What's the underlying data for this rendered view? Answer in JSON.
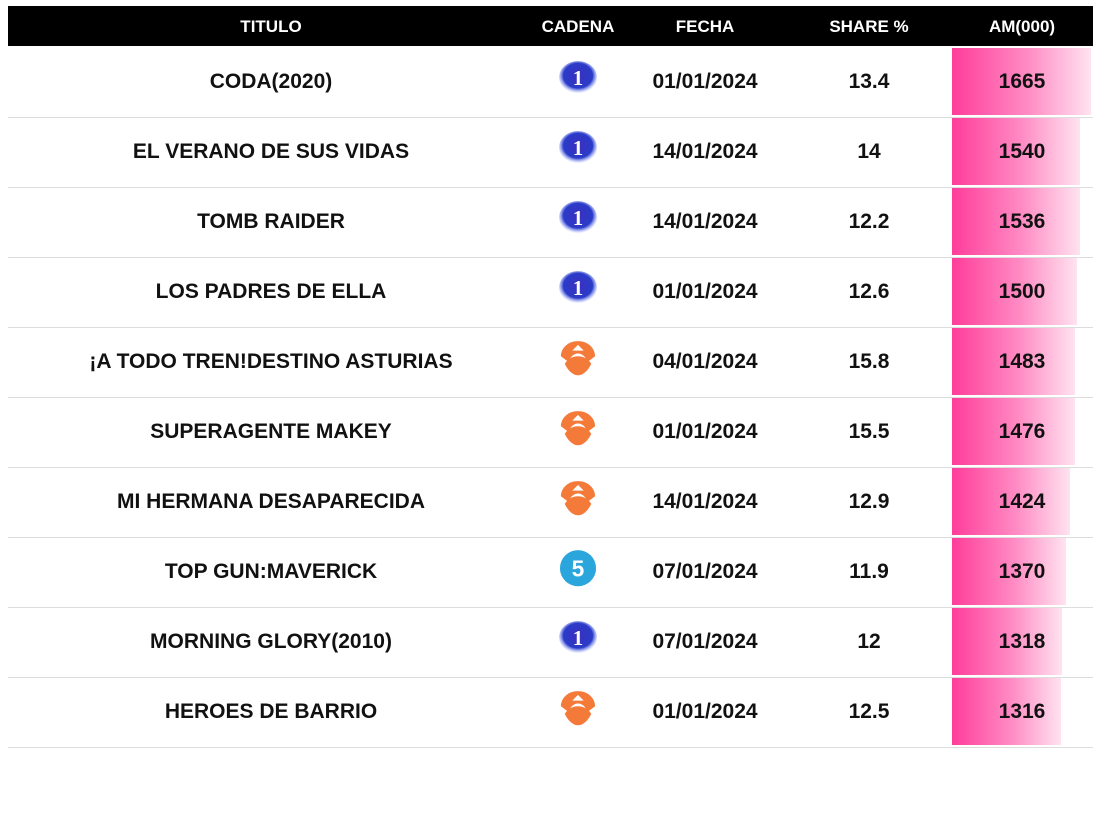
{
  "header": {
    "titulo": "TITULO",
    "cadena": "CADENA",
    "fecha": "FECHA",
    "share": "SHARE %",
    "am": "AM(000)"
  },
  "chart_data": {
    "type": "table",
    "columns": [
      "TITULO",
      "CADENA",
      "FECHA",
      "SHARE %",
      "AM(000)"
    ],
    "bar_color": "#ff3d9a",
    "rows": [
      {
        "titulo": "CODA(2020)",
        "cadena": "la1",
        "cadena_label": "1",
        "fecha": "01/01/2024",
        "share": "13.4",
        "am": 1665
      },
      {
        "titulo": "EL VERANO DE SUS VIDAS",
        "cadena": "la1",
        "cadena_label": "1",
        "fecha": "14/01/2024",
        "share": "14",
        "am": 1540
      },
      {
        "titulo": "TOMB RAIDER",
        "cadena": "la1",
        "cadena_label": "1",
        "fecha": "14/01/2024",
        "share": "12.2",
        "am": 1536
      },
      {
        "titulo": "LOS PADRES DE ELLA",
        "cadena": "la1",
        "cadena_label": "1",
        "fecha": "01/01/2024",
        "share": "12.6",
        "am": 1500
      },
      {
        "titulo": "¡A TODO TREN!DESTINO ASTURIAS",
        "cadena": "antena3",
        "fecha": "04/01/2024",
        "share": "15.8",
        "am": 1483
      },
      {
        "titulo": "SUPERAGENTE MAKEY",
        "cadena": "antena3",
        "fecha": "01/01/2024",
        "share": "15.5",
        "am": 1476
      },
      {
        "titulo": "MI HERMANA DESAPARECIDA",
        "cadena": "antena3",
        "fecha": "14/01/2024",
        "share": "12.9",
        "am": 1424
      },
      {
        "titulo": "TOP GUN:MAVERICK",
        "cadena": "telecinco",
        "cadena_label": "5",
        "fecha": "07/01/2024",
        "share": "11.9",
        "am": 1370
      },
      {
        "titulo": "MORNING GLORY(2010)",
        "cadena": "la1",
        "cadena_label": "1",
        "fecha": "07/01/2024",
        "share": "12",
        "am": 1318
      },
      {
        "titulo": "HEROES DE BARRIO",
        "cadena": "antena3",
        "fecha": "01/01/2024",
        "share": "12.5",
        "am": 1316
      }
    ]
  }
}
